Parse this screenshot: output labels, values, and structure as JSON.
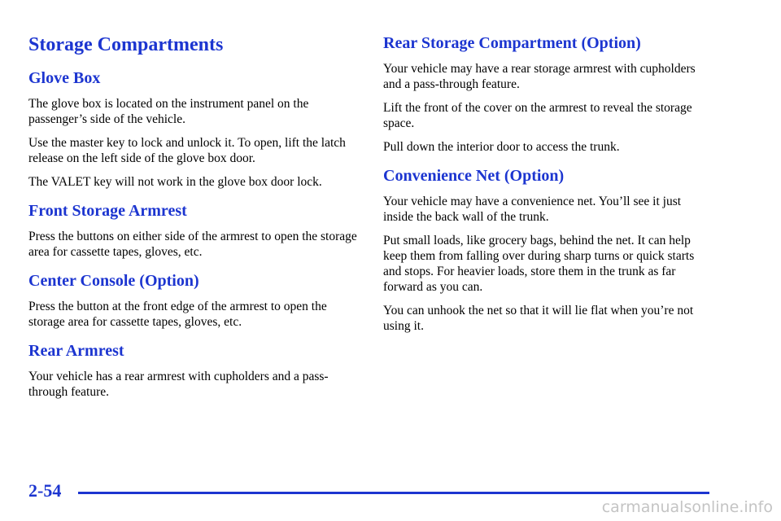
{
  "title": "Storage Compartments",
  "left_column": [
    {
      "heading": "Glove Box",
      "paragraphs": [
        "The glove box is located on the instrument panel on the passenger’s side of the vehicle.",
        "Use the master key to lock and unlock it. To open, lift the latch release on the left side of the glove box door.",
        "The VALET key will not work in the glove box door lock."
      ]
    },
    {
      "heading": "Front Storage Armrest",
      "paragraphs": [
        "Press the buttons on either side of the armrest to open the storage area for cassette tapes, gloves, etc."
      ]
    },
    {
      "heading": "Center Console (Option)",
      "paragraphs": [
        "Press the button at the front edge of the armrest to open the storage area for cassette tapes, gloves, etc."
      ]
    },
    {
      "heading": "Rear Armrest",
      "paragraphs": [
        "Your vehicle has a rear armrest with cupholders and a pass-through feature."
      ]
    }
  ],
  "right_column": [
    {
      "heading": "Rear Storage Compartment (Option)",
      "paragraphs": [
        "Your vehicle may have a rear storage armrest with cupholders and a pass-through feature.",
        "Lift the front of the cover on the armrest to reveal the storage space.",
        "Pull down the interior door to access the trunk."
      ]
    },
    {
      "heading": "Convenience Net (Option)",
      "paragraphs": [
        "Your vehicle may have a convenience net. You’ll see it just inside the back wall of the trunk.",
        "Put small loads, like grocery bags, behind the net. It can help keep them from falling over during sharp turns or quick starts and stops. For heavier loads, store them in the trunk as far forward as you can.",
        "You can unhook the net so that it will lie flat when you’re not using it."
      ]
    }
  ],
  "footer": {
    "page_number": "2-54",
    "watermark": "carmanualsonline.info"
  }
}
